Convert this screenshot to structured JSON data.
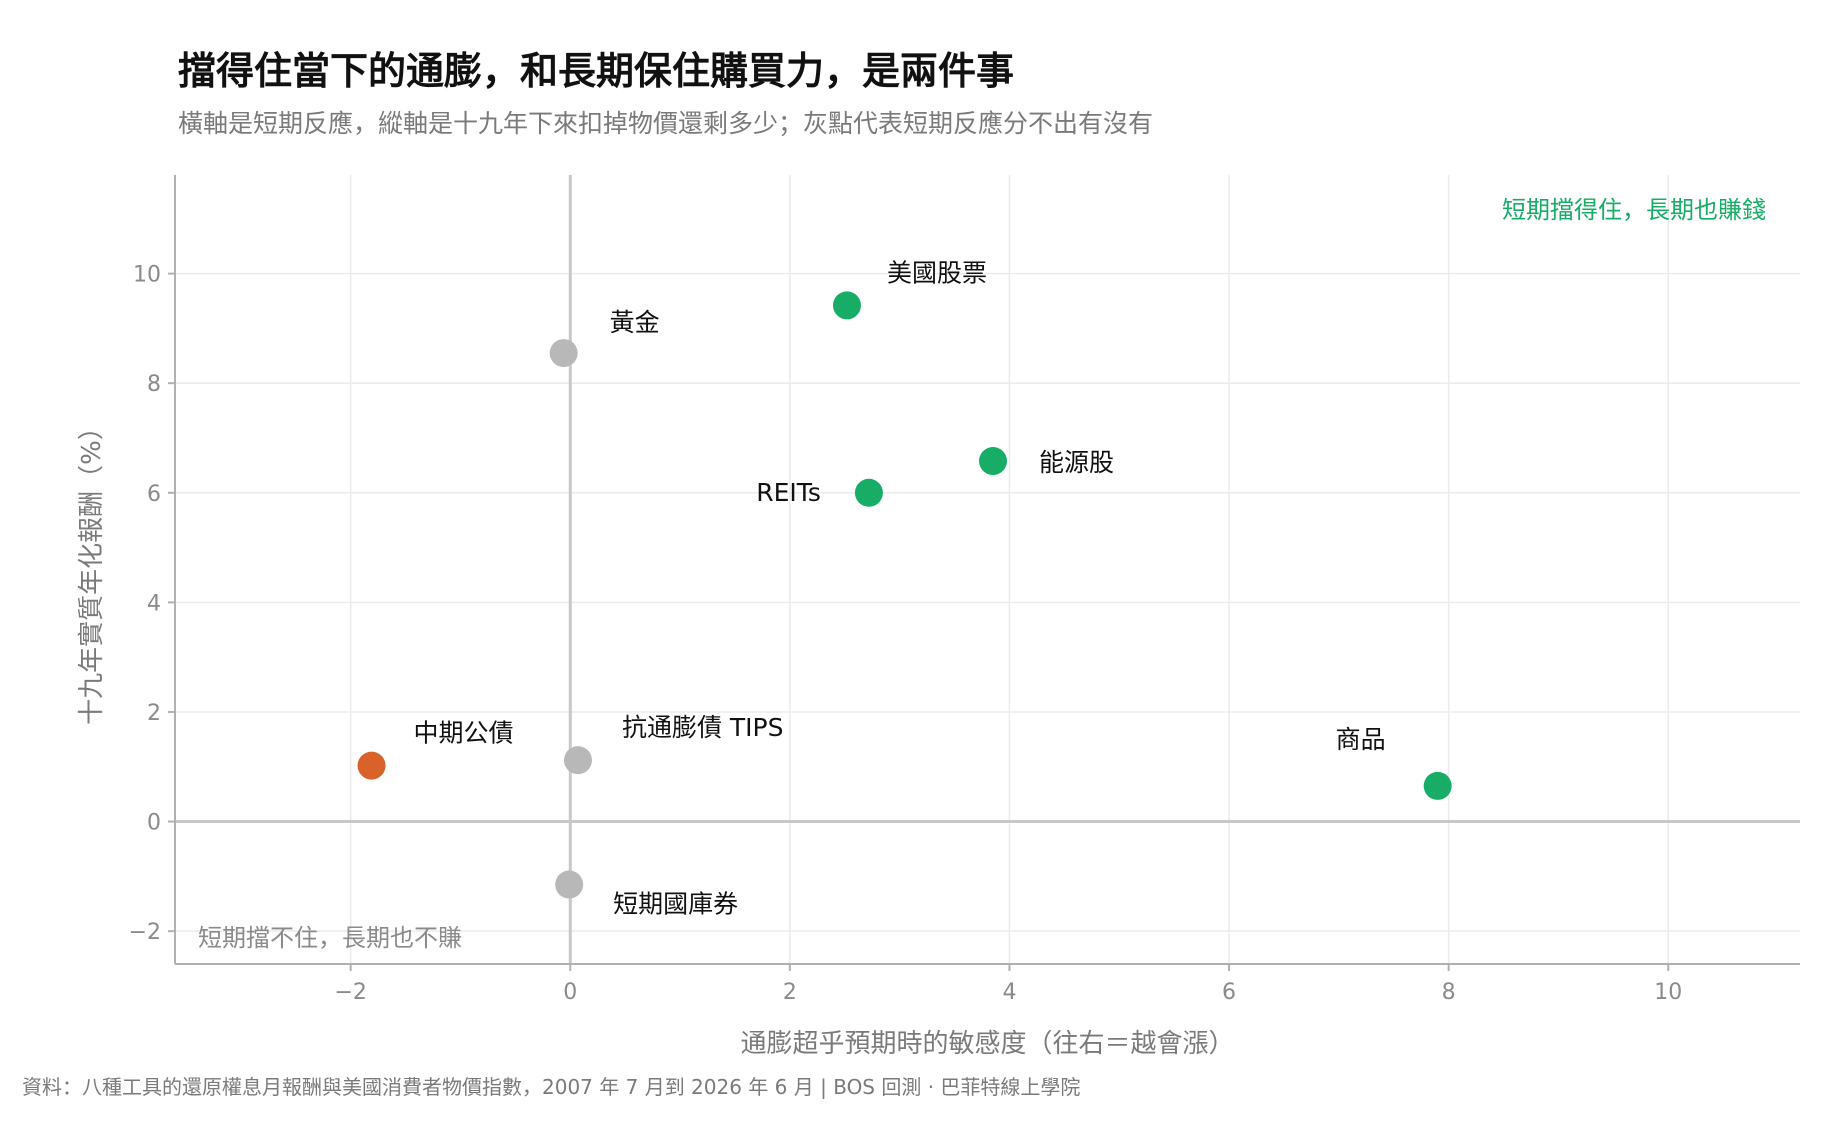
{
  "colors": {
    "positive": "#17ad67",
    "negative": "#d9622b",
    "neutral": "#b8b8b8",
    "grid": "#ebebeb",
    "zero_line": "#c8c8c8",
    "axis": "#b0b0b0"
  },
  "chart_data": {
    "type": "scatter",
    "title": "擋得住當下的通膨，和長期保住購買力，是兩件事",
    "subtitle": "橫軸是短期反應，縱軸是十九年下來扣掉物價還剩多少；灰點代表短期反應分不出有沒有",
    "xlabel": "通膨超乎預期時的敏感度（往右＝越會漲）",
    "ylabel": "十九年實質年化報酬（%）",
    "xlim": [
      -3.6,
      11.2
    ],
    "ylim": [
      -2.6,
      11.8
    ],
    "x_ticks": [
      -2,
      0,
      2,
      4,
      6,
      8,
      10
    ],
    "x_tick_labels": [
      "−2",
      "0",
      "2",
      "4",
      "6",
      "8",
      "10"
    ],
    "y_ticks": [
      -2,
      0,
      2,
      4,
      6,
      8,
      10
    ],
    "y_tick_labels": [
      "−2",
      "0",
      "2",
      "4",
      "6",
      "8",
      "10"
    ],
    "grid": true,
    "points": [
      {
        "label": "美國股票",
        "x": 2.52,
        "y": 9.42,
        "group": "positive"
      },
      {
        "label": "黃金",
        "x": -0.06,
        "y": 8.55,
        "group": "neutral"
      },
      {
        "label": "能源股",
        "x": 3.85,
        "y": 6.58,
        "group": "positive"
      },
      {
        "label": "REITs",
        "x": 2.72,
        "y": 6.0,
        "group": "positive"
      },
      {
        "label": "中期公債",
        "x": -1.81,
        "y": 1.02,
        "group": "negative"
      },
      {
        "label": "抗通膨債 TIPS",
        "x": 0.07,
        "y": 1.12,
        "group": "neutral"
      },
      {
        "label": "商品",
        "x": 7.9,
        "y": 0.65,
        "group": "positive"
      },
      {
        "label": "短期國庫券",
        "x": -0.01,
        "y": -1.15,
        "group": "neutral"
      }
    ],
    "annotations": {
      "top_right": "短期擋得住，長期也賺錢",
      "bottom_left": "短期擋不住，長期也不賺"
    }
  },
  "caption": "資料：八種工具的還原權息月報酬與美國消費者物價指數，2007 年 7 月到 2026 年 6 月 | BOS 回測 ·  巴菲特線上學院"
}
